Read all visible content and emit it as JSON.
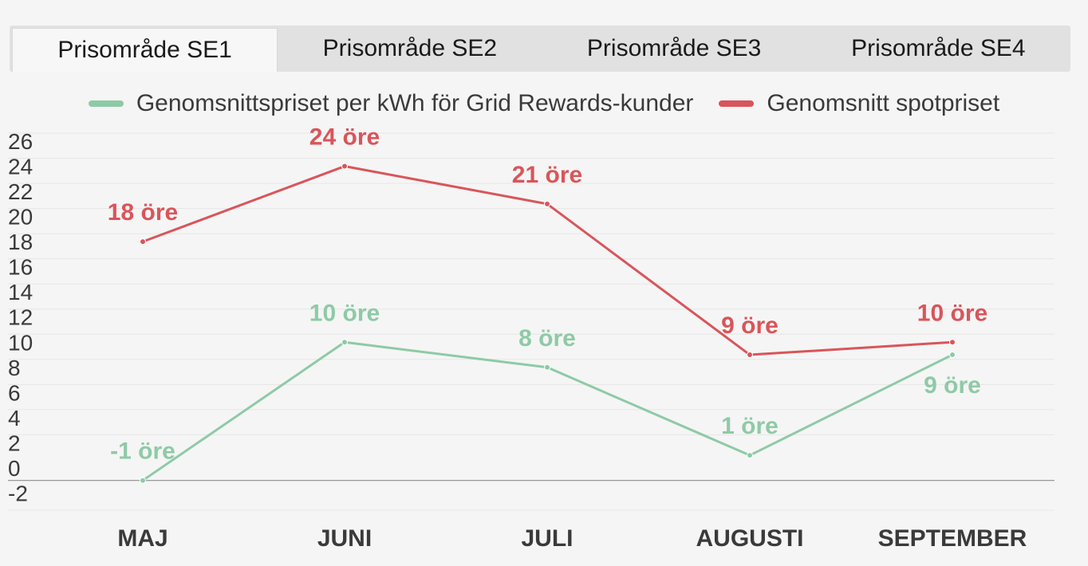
{
  "tabs": [
    {
      "label": "Prisområde SE1",
      "active": true
    },
    {
      "label": "Prisområde SE2",
      "active": false
    },
    {
      "label": "Prisområde SE3",
      "active": false
    },
    {
      "label": "Prisområde SE4",
      "active": false
    }
  ],
  "colors": {
    "green": "#8ecaa6",
    "red": "#d9555a",
    "axis_text": "#3a3a3a",
    "grid": "#e6e6e6",
    "baseline": "#8c8c8c"
  },
  "chart_data": {
    "type": "line",
    "categories": [
      "MAJ",
      "JUNI",
      "JULI",
      "AUGUSTI",
      "SEPTEMBER"
    ],
    "yticks": [
      -2,
      0,
      2,
      4,
      6,
      8,
      10,
      12,
      14,
      16,
      18,
      20,
      22,
      24,
      26
    ],
    "ylim": [
      -4,
      26
    ],
    "grid": true,
    "legend_position": "top",
    "series": [
      {
        "name": "Genomsnittspriset per kWh för Grid Rewards-kunder",
        "color": "#8ecaa6",
        "values": [
          -1,
          10,
          8,
          1,
          9
        ],
        "labels": [
          "-1 öre",
          "10 öre",
          "8 öre",
          "1 öre",
          "9 öre"
        ],
        "label_positions": [
          "above",
          "above",
          "above",
          "above",
          "below"
        ]
      },
      {
        "name": "Genomsnitt spotpriset",
        "color": "#d9555a",
        "values": [
          18,
          24,
          21,
          9,
          10
        ],
        "labels": [
          "18 öre",
          "24 öre",
          "21 öre",
          "9 öre",
          "10 öre"
        ],
        "label_positions": [
          "above",
          "above",
          "above",
          "above",
          "above"
        ]
      }
    ]
  }
}
